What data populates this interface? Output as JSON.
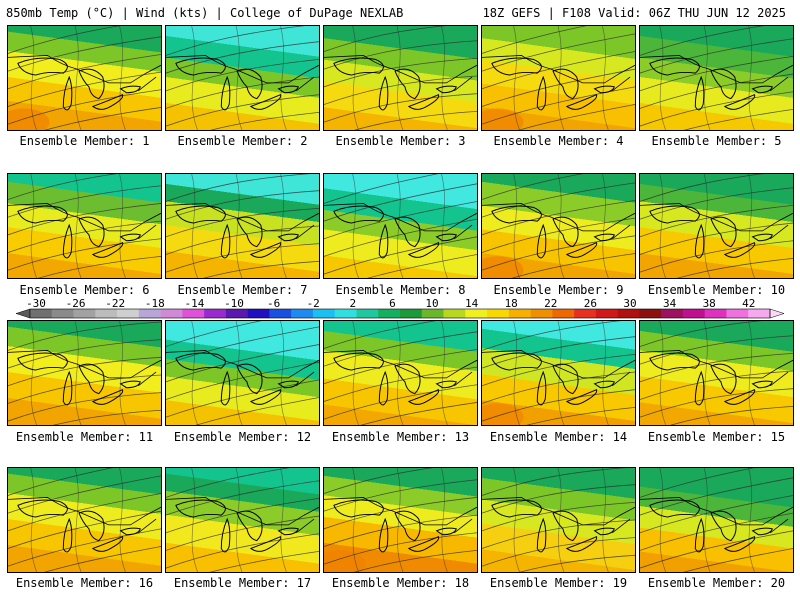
{
  "header": {
    "left": "850mb Temp (°C) | Wind (kts) | College of DuPage NEXLAB",
    "right": "18Z GEFS | F108 Valid: 06Z THU JUN 12 2025"
  },
  "panel_label_prefix": "Ensemble Member: ",
  "members": [
    {
      "id": 1,
      "bands": [
        [
          "#1aa85a",
          0.1
        ],
        [
          "#7cc628",
          0.28
        ],
        [
          "#f2ee1e",
          0.52
        ],
        [
          "#f8c600",
          0.74
        ],
        [
          "#f2a400",
          1
        ]
      ],
      "hot": true
    },
    {
      "id": 2,
      "bands": [
        [
          "#3fe6d8",
          0.14
        ],
        [
          "#14c48e",
          0.34
        ],
        [
          "#7cc628",
          0.52
        ],
        [
          "#e8ec1e",
          0.76
        ],
        [
          "#f4c200",
          1
        ]
      ],
      "hot": false
    },
    {
      "id": 3,
      "bands": [
        [
          "#1aa85a",
          0.16
        ],
        [
          "#7cc628",
          0.36
        ],
        [
          "#d8e820",
          0.56
        ],
        [
          "#f6da10",
          0.8
        ],
        [
          "#f4b400",
          1
        ]
      ],
      "hot": false
    },
    {
      "id": 4,
      "bands": [
        [
          "#7cc628",
          0.16
        ],
        [
          "#d8e820",
          0.36
        ],
        [
          "#f6da10",
          0.58
        ],
        [
          "#f8c000",
          0.8
        ],
        [
          "#f2a400",
          1
        ]
      ],
      "hot": true
    },
    {
      "id": 5,
      "bands": [
        [
          "#1aa85a",
          0.14
        ],
        [
          "#4cb63a",
          0.34
        ],
        [
          "#8ccc28",
          0.52
        ],
        [
          "#e6ea1e",
          0.76
        ],
        [
          "#f6c800",
          1
        ]
      ],
      "hot": false
    },
    {
      "id": 6,
      "bands": [
        [
          "#14c48e",
          0.12
        ],
        [
          "#6cbe30",
          0.32
        ],
        [
          "#e8ec1e",
          0.54
        ],
        [
          "#f8cc00",
          0.78
        ],
        [
          "#f2a800",
          1
        ]
      ],
      "hot": false
    },
    {
      "id": 7,
      "bands": [
        [
          "#3fe6d8",
          0.14
        ],
        [
          "#1aa85a",
          0.3
        ],
        [
          "#c8e222",
          0.52
        ],
        [
          "#f6da10",
          0.76
        ],
        [
          "#f4b400",
          1
        ]
      ],
      "hot": false
    },
    {
      "id": 8,
      "bands": [
        [
          "#40e8e0",
          0.18
        ],
        [
          "#14c48e",
          0.38
        ],
        [
          "#8ccc28",
          0.56
        ],
        [
          "#eeec1e",
          0.8
        ],
        [
          "#f6c800",
          1
        ]
      ],
      "hot": false
    },
    {
      "id": 9,
      "bands": [
        [
          "#1aa85a",
          0.12
        ],
        [
          "#8ccc28",
          0.34
        ],
        [
          "#eeec1e",
          0.56
        ],
        [
          "#f8c400",
          0.78
        ],
        [
          "#f2a400",
          1
        ]
      ],
      "hot": true
    },
    {
      "id": 10,
      "bands": [
        [
          "#1aa85a",
          0.14
        ],
        [
          "#4cb63a",
          0.3
        ],
        [
          "#d8e820",
          0.54
        ],
        [
          "#f8c800",
          0.78
        ],
        [
          "#f2a400",
          1
        ]
      ],
      "hot": false
    },
    {
      "id": 11,
      "bands": [
        [
          "#1aa85a",
          0.1
        ],
        [
          "#7cc628",
          0.28
        ],
        [
          "#f2ee1e",
          0.52
        ],
        [
          "#f8c600",
          0.76
        ],
        [
          "#f2a400",
          1
        ]
      ],
      "hot": false
    },
    {
      "id": 12,
      "bands": [
        [
          "#40e8e0",
          0.22
        ],
        [
          "#14c48e",
          0.4
        ],
        [
          "#7cc628",
          0.56
        ],
        [
          "#e8ec1e",
          0.78
        ],
        [
          "#f4c200",
          1
        ]
      ],
      "hot": false
    },
    {
      "id": 13,
      "bands": [
        [
          "#14c48e",
          0.14
        ],
        [
          "#7cc628",
          0.32
        ],
        [
          "#eeec1e",
          0.58
        ],
        [
          "#f8c600",
          0.82
        ],
        [
          "#f2a800",
          1
        ]
      ],
      "hot": false
    },
    {
      "id": 14,
      "bands": [
        [
          "#40e8e0",
          0.12
        ],
        [
          "#14c48e",
          0.3
        ],
        [
          "#d0e622",
          0.54
        ],
        [
          "#f8c800",
          0.78
        ],
        [
          "#f2a000",
          1
        ]
      ],
      "hot": true
    },
    {
      "id": 15,
      "bands": [
        [
          "#1aa85a",
          0.14
        ],
        [
          "#7cc628",
          0.32
        ],
        [
          "#eeec1e",
          0.56
        ],
        [
          "#f8c800",
          0.8
        ],
        [
          "#f2a800",
          1
        ]
      ],
      "hot": false
    },
    {
      "id": 16,
      "bands": [
        [
          "#1aa85a",
          0.1
        ],
        [
          "#7cc628",
          0.28
        ],
        [
          "#eeec1e",
          0.52
        ],
        [
          "#f8c600",
          0.76
        ],
        [
          "#f2a400",
          1
        ]
      ],
      "hot": false
    },
    {
      "id": 17,
      "bands": [
        [
          "#14c48e",
          0.1
        ],
        [
          "#1aa85a",
          0.26
        ],
        [
          "#8ccc28",
          0.48
        ],
        [
          "#f2e81e",
          0.74
        ],
        [
          "#f8c000",
          1
        ]
      ],
      "hot": false
    },
    {
      "id": 18,
      "bands": [
        [
          "#1aa85a",
          0.12
        ],
        [
          "#8ccc28",
          0.3
        ],
        [
          "#eeec1e",
          0.5
        ],
        [
          "#f8b800",
          0.74
        ],
        [
          "#f08a00",
          1
        ]
      ],
      "hot": true
    },
    {
      "id": 19,
      "bands": [
        [
          "#1aa85a",
          0.14
        ],
        [
          "#7cc628",
          0.34
        ],
        [
          "#d8e820",
          0.56
        ],
        [
          "#f6d010",
          0.8
        ],
        [
          "#f4b400",
          1
        ]
      ],
      "hot": false
    },
    {
      "id": 20,
      "bands": [
        [
          "#1aa85a",
          0.22
        ],
        [
          "#4cb63a",
          0.4
        ],
        [
          "#d8e820",
          0.6
        ],
        [
          "#f8c000",
          0.82
        ],
        [
          "#f2a000",
          1
        ]
      ],
      "hot": false
    }
  ],
  "colorbar": {
    "labels": [
      "-30",
      "-26",
      "-22",
      "-18",
      "-14",
      "-10",
      "-6",
      "-2",
      "2",
      "6",
      "10",
      "14",
      "18",
      "22",
      "26",
      "30",
      "34",
      "38",
      "42"
    ],
    "colors": [
      "#707070",
      "#8a8a8a",
      "#a2a2a2",
      "#bcbcbc",
      "#cfcfcf",
      "#b9a6d8",
      "#d08ad8",
      "#e050d8",
      "#9a2ad0",
      "#5a18b0",
      "#2010c0",
      "#1a50e0",
      "#1c8cf0",
      "#1ac0f0",
      "#30e0e0",
      "#20c8a0",
      "#14b060",
      "#1c9a3a",
      "#6ab82a",
      "#b8d820",
      "#f0f020",
      "#f8d800",
      "#f8b000",
      "#f09000",
      "#f06800",
      "#e83020",
      "#d01818",
      "#b01010",
      "#8c1010",
      "#a01060",
      "#c01090",
      "#e030c0",
      "#f070e0",
      "#f8a8f0"
    ]
  }
}
